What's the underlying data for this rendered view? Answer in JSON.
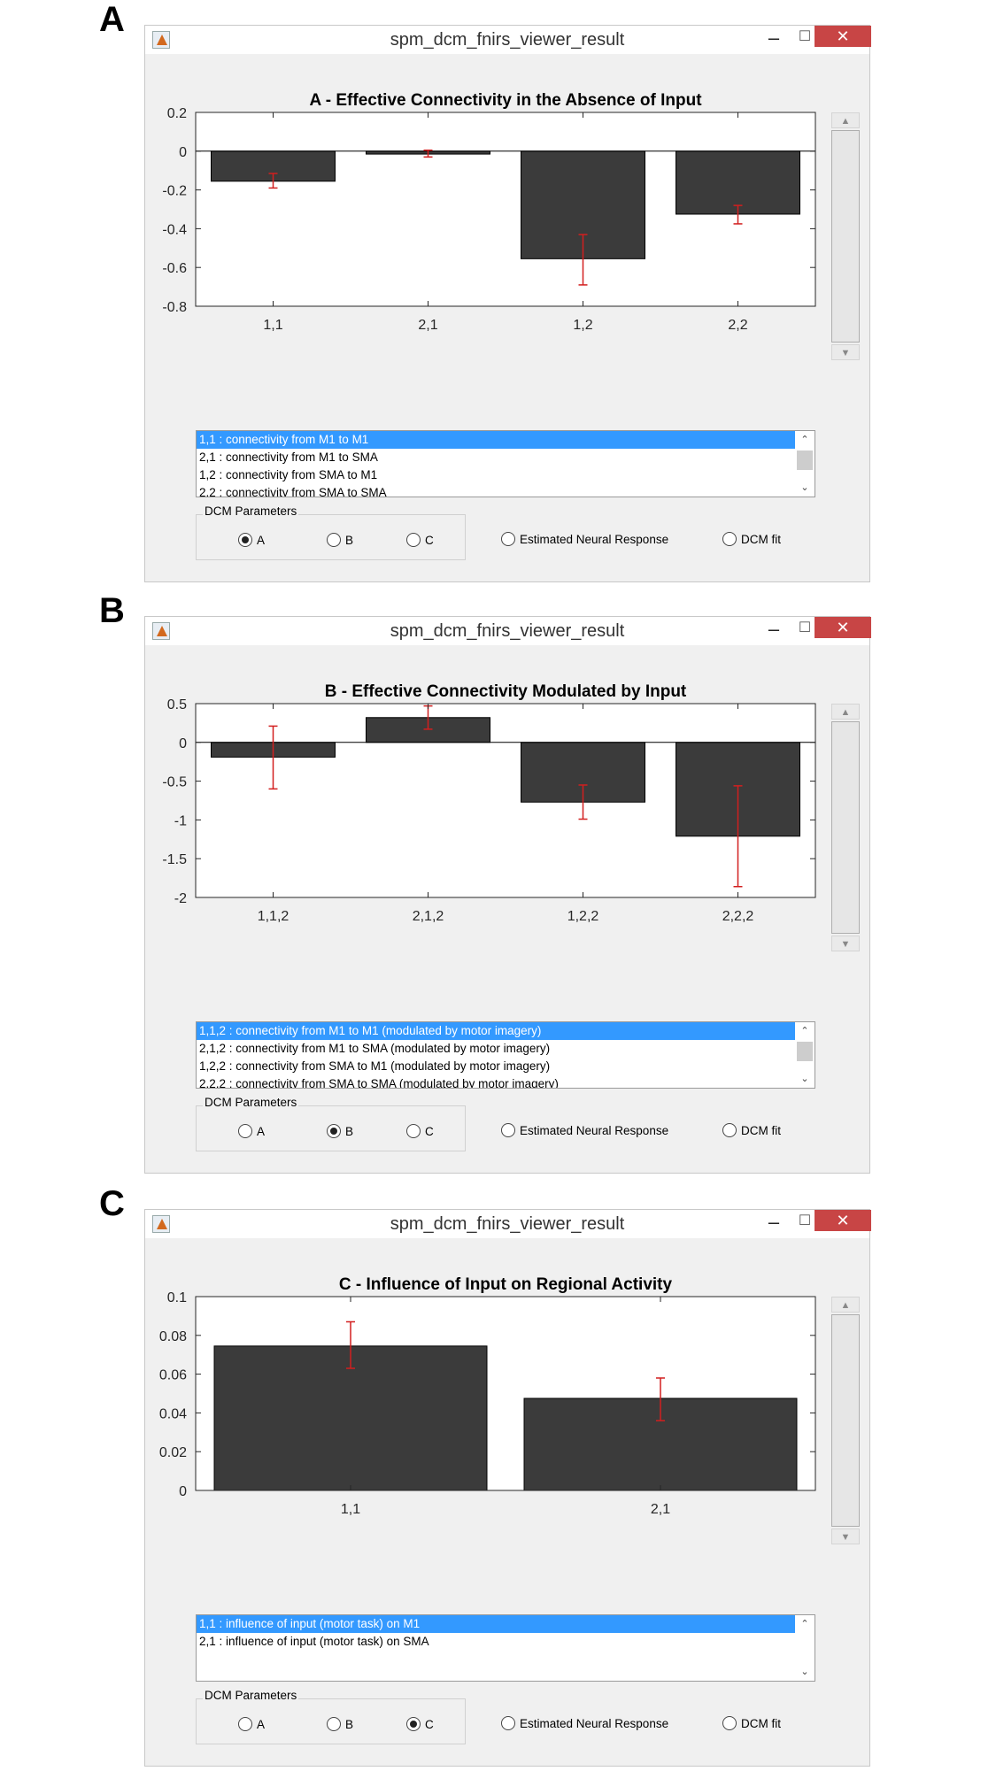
{
  "panels": [
    {
      "letter": "A",
      "window_title": "spm_dcm_fnirs_viewer_result",
      "controls": {
        "minimize": "–",
        "maximize": "☐",
        "close": "✕"
      },
      "chart_data": {
        "type": "bar",
        "title": "A - Effective Connectivity in the Absence of Input",
        "categories": [
          "1,1",
          "2,1",
          "1,2",
          "2,2"
        ],
        "values": [
          -0.155,
          -0.015,
          -0.555,
          -0.325
        ],
        "error_low": [
          -0.19,
          -0.03,
          -0.69,
          -0.375
        ],
        "error_high": [
          -0.115,
          0.005,
          -0.43,
          -0.28
        ],
        "ylim": [
          -0.8,
          0.2
        ],
        "yticks": [
          -0.8,
          -0.6,
          -0.4,
          -0.2,
          0,
          0.2
        ],
        "ytick_labels": [
          "-0.8",
          "-0.6",
          "-0.4",
          "-0.2",
          "0",
          "0.2"
        ],
        "bar_color": "#3b3b3b",
        "error_color": "#d21f1f"
      },
      "list": [
        "1,1 : connectivity from M1 to M1",
        "2,1 : connectivity from M1 to SMA",
        "1,2 : connectivity from SMA to M1",
        "2,2 : connectivity from SMA to SMA"
      ],
      "list_selected": 0,
      "group_label": "DCM Parameters",
      "radios": [
        "A",
        "B",
        "C"
      ],
      "radio_selected": 0,
      "extra_radios": [
        "Estimated Neural Response",
        "DCM fit"
      ]
    },
    {
      "letter": "B",
      "window_title": "spm_dcm_fnirs_viewer_result",
      "controls": {
        "minimize": "–",
        "maximize": "☐",
        "close": "✕"
      },
      "chart_data": {
        "type": "bar",
        "title": "B - Effective Connectivity Modulated by Input",
        "categories": [
          "1,1,2",
          "2,1,2",
          "1,2,2",
          "2,2,2"
        ],
        "values": [
          -0.19,
          0.32,
          -0.77,
          -1.21
        ],
        "error_low": [
          -0.6,
          0.17,
          -0.99,
          -1.86
        ],
        "error_high": [
          0.21,
          0.47,
          -0.55,
          -0.56
        ],
        "ylim": [
          -2,
          0.5
        ],
        "yticks": [
          -2,
          -1.5,
          -1,
          -0.5,
          0,
          0.5
        ],
        "ytick_labels": [
          "-2",
          "-1.5",
          "-1",
          "-0.5",
          "0",
          "0.5"
        ],
        "bar_color": "#3b3b3b",
        "error_color": "#d21f1f"
      },
      "list": [
        "1,1,2 : connectivity from M1 to M1 (modulated by motor imagery)",
        "2,1,2 : connectivity from M1 to SMA (modulated by motor imagery)",
        "1,2,2 : connectivity from SMA to M1 (modulated by motor imagery)",
        "2,2,2 : connectivity from SMA to SMA (modulated by motor imagery)"
      ],
      "list_selected": 0,
      "group_label": "DCM Parameters",
      "radios": [
        "A",
        "B",
        "C"
      ],
      "radio_selected": 1,
      "extra_radios": [
        "Estimated Neural Response",
        "DCM fit"
      ]
    },
    {
      "letter": "C",
      "window_title": "spm_dcm_fnirs_viewer_result",
      "controls": {
        "minimize": "–",
        "maximize": "☐",
        "close": "✕"
      },
      "chart_data": {
        "type": "bar",
        "title": "C - Influence of Input on Regional Activity",
        "categories": [
          "1,1",
          "2,1"
        ],
        "values": [
          0.0745,
          0.0475
        ],
        "error_low": [
          0.063,
          0.036
        ],
        "error_high": [
          0.087,
          0.058
        ],
        "ylim": [
          0,
          0.1
        ],
        "yticks": [
          0,
          0.02,
          0.04,
          0.06,
          0.08,
          0.1
        ],
        "ytick_labels": [
          "0",
          "0.02",
          "0.04",
          "0.06",
          "0.08",
          "0.1"
        ],
        "bar_color": "#3b3b3b",
        "error_color": "#d21f1f"
      },
      "list": [
        "1,1 : influence of input (motor task) on M1",
        "2,1 : influence of input (motor task) on SMA"
      ],
      "list_selected": 0,
      "group_label": "DCM Parameters",
      "radios": [
        "A",
        "B",
        "C"
      ],
      "radio_selected": 2,
      "extra_radios": [
        "Estimated Neural Response",
        "DCM fit"
      ]
    }
  ]
}
